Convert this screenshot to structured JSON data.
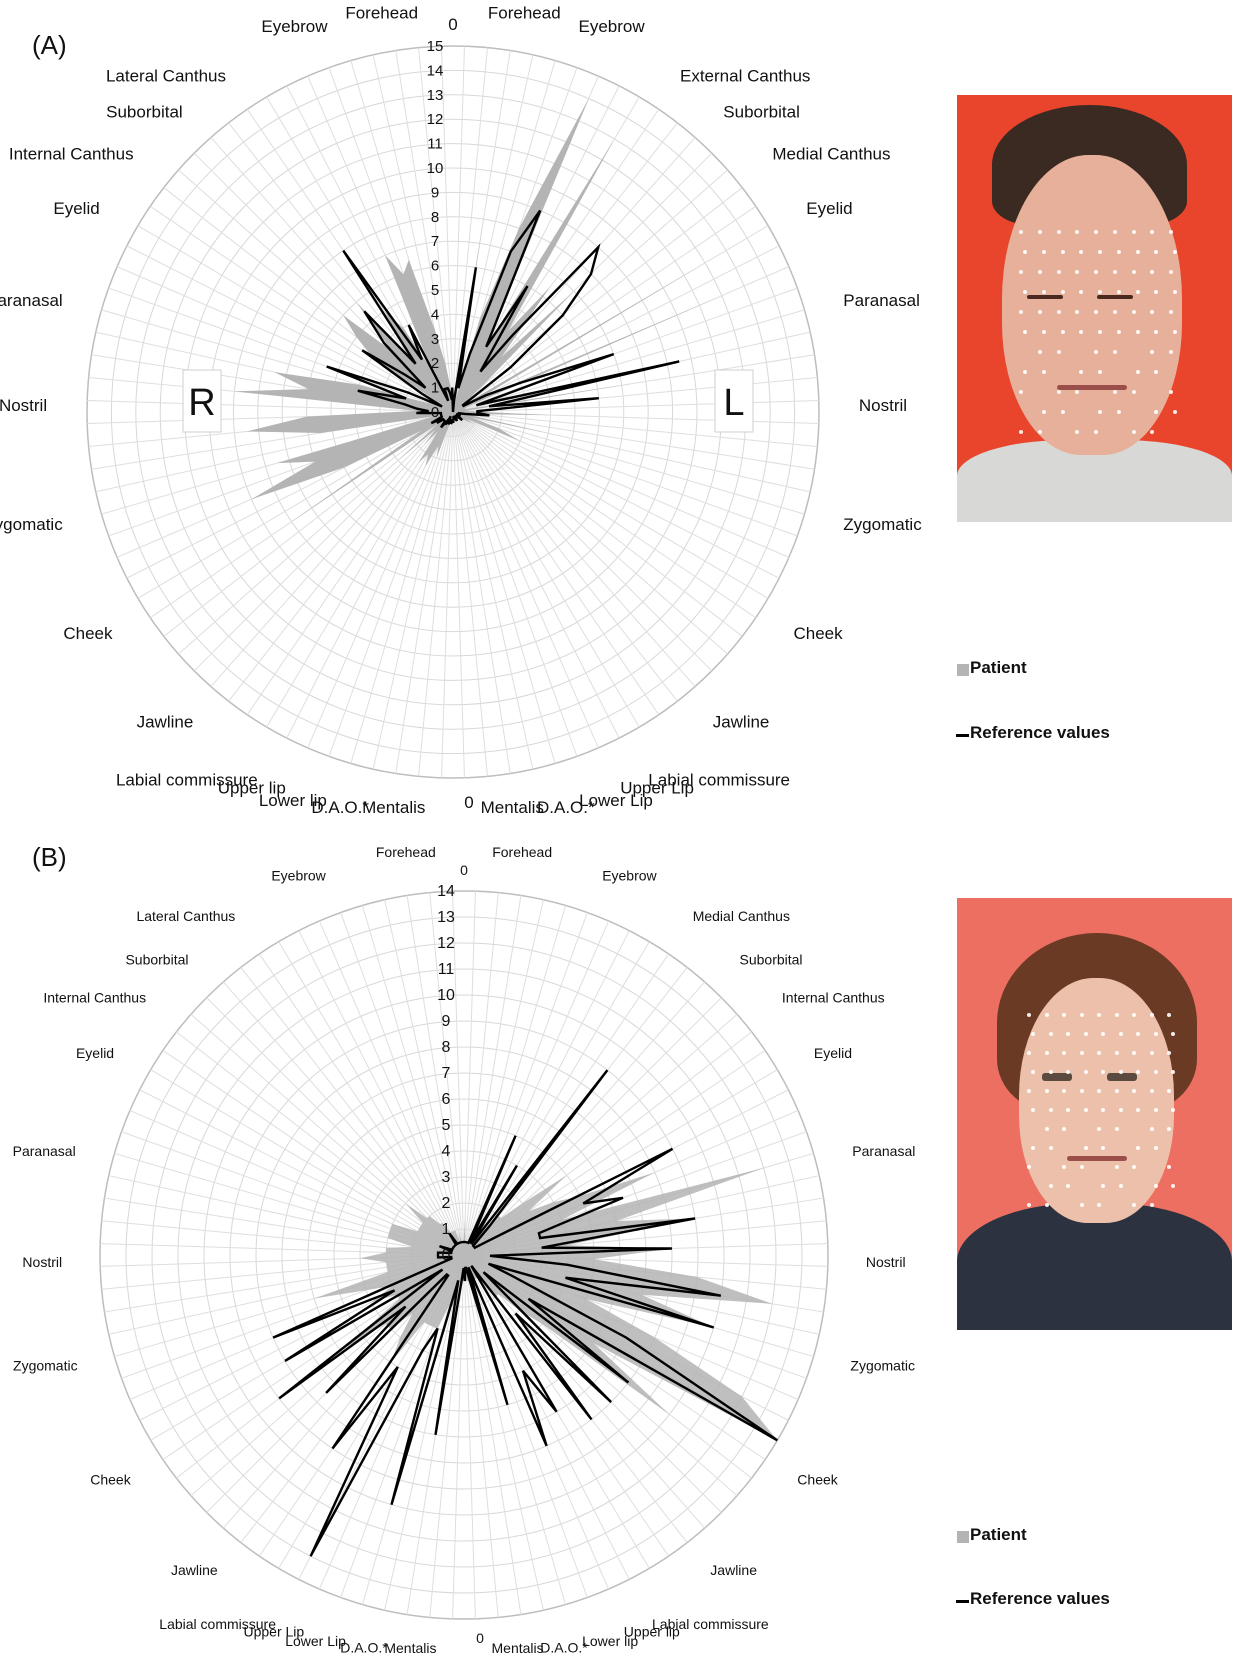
{
  "panels": [
    {
      "label": "(A)",
      "top_zero": "0",
      "bottom_zero": "0",
      "side_letters": {
        "right_side": "R",
        "left_side": "L"
      },
      "legend": {
        "patient": "Patient",
        "reference": "Reference values"
      },
      "colors": {
        "patient_fill": "#b4b4b4",
        "reference_line": "#000000",
        "photo_bg": "#e8452c"
      }
    },
    {
      "label": "(B)",
      "top_zero": "0",
      "bottom_zero": "0",
      "legend": {
        "patient": "Patient",
        "reference": "Reference values"
      },
      "colors": {
        "patient_fill": "#b4b4b4",
        "reference_line": "#000000",
        "photo_bg": "#ec6f61"
      }
    }
  ],
  "chart_data": [
    {
      "type": "radar",
      "rmax": 15,
      "ticks": [
        0,
        1,
        2,
        3,
        4,
        5,
        6,
        7,
        8,
        9,
        10,
        11,
        12,
        13,
        14,
        15
      ],
      "left_labels": [
        "Forehead",
        "Eyebrow",
        "Lateral Canthus",
        "Suborbital",
        "Internal Canthus",
        "Eyelid",
        "Paranasal",
        "Nostril",
        "Zygomatic",
        "Cheek",
        "Jawline",
        "Labial commissure",
        "Upper lip",
        "Lower lip",
        "D.A.O.*",
        "Mentalis"
      ],
      "right_labels": [
        "Forehead",
        "Eyebrow",
        "External Canthus",
        "Suborbital",
        "Medial Canthus",
        "Eyelid",
        "Paranasal",
        "Nostril",
        "Zygomatic",
        "Cheek",
        "Jawline",
        "Labial commissure",
        "Upper Lip",
        "Lower Lip",
        "D.A.O.*",
        "Mentalis"
      ],
      "series": [
        {
          "name": "Patient",
          "values": [
            0.3,
            0.5,
            8,
            0.6,
            4,
            8,
            14,
            3,
            13,
            4,
            6.5,
            3,
            7,
            1.5,
            0.5,
            0.5,
            11.5,
            1.2,
            12,
            0.6,
            0.5,
            0.5,
            7.5,
            0.5,
            0.8,
            4,
            1,
            0.5,
            4,
            0.8,
            2,
            3,
            0.6,
            1,
            0.6,
            0.5,
            0.4,
            0.4,
            0.3,
            0.3,
            0.3,
            0.3,
            0.3,
            0.3,
            0.3,
            0.3,
            0.3,
            0.3,
            0.2,
            0.2,
            0.2,
            0.3,
            0.4,
            0.5,
            0.6,
            2,
            1.5,
            2.5,
            2,
            2.5,
            1,
            1.8,
            1,
            3,
            0.8,
            8,
            1.5,
            5,
            9,
            6,
            7.5,
            0.8,
            5.5,
            8.5,
            6,
            1.5,
            9,
            6,
            7.5,
            4,
            1,
            1.5,
            1,
            0.5,
            4,
            5,
            6,
            3.5,
            6,
            3,
            5,
            4,
            2,
            7,
            6,
            6.5,
            3.5,
            2,
            1,
            1
          ]
        },
        {
          "name": "Reference values",
          "values": [
            0,
            0.5,
            6,
            1,
            2.5,
            7,
            9,
            3,
            6,
            2,
            4,
            9,
            8,
            6,
            3,
            0.5,
            0.5,
            1.5,
            3,
            7,
            1,
            9.5,
            1.5,
            6,
            1,
            1,
            1.5,
            0.5,
            0.2,
            0.3,
            0.3,
            0.3,
            0.2,
            0.2,
            0.2,
            0.3,
            0.5,
            0.3,
            0.2,
            0.2,
            0.3,
            0.2,
            0.3,
            0.4,
            0.3,
            0.3,
            0.3,
            0.2,
            0.2,
            0.4,
            0.4,
            0.4,
            0.5,
            0.3,
            0.4,
            0.5,
            0.5,
            0.2,
            0.6,
            0.5,
            0.8,
            0.5,
            0.5,
            0.5,
            0.5,
            0.8,
            0.5,
            1,
            0.5,
            0.5,
            0.5,
            0.5,
            0.5,
            0.5,
            1.5,
            1,
            1.5,
            2,
            4,
            2,
            5.5,
            2,
            0.5,
            1.5,
            4.5,
            2.5,
            1.5,
            4,
            5.5,
            2.5,
            8,
            2.5,
            4,
            0.5,
            1,
            1,
            1,
            0.8,
            0.5,
            1
          ]
        }
      ]
    },
    {
      "type": "radar",
      "rmax": 14,
      "ticks": [
        0,
        1,
        2,
        3,
        4,
        5,
        6,
        7,
        8,
        9,
        10,
        11,
        12,
        13,
        14
      ],
      "left_labels": [
        "Forehead",
        "Eyebrow",
        "Lateral Canthus",
        "Suborbital",
        "Internal Canthus",
        "Eyelid",
        "Paranasal",
        "Nostril",
        "Zygomatic",
        "Cheek",
        "Jawline",
        "Labial commissure",
        "Upper Lip",
        "Lower Lip",
        "D.A.O.*",
        "Mentalis"
      ],
      "right_labels": [
        "Forehead",
        "Eyebrow",
        "Medial Canthus",
        "Suborbital",
        "Internal Canthus",
        "Eyelid",
        "Paranasal",
        "Nostril",
        "Zygomatic",
        "Cheek",
        "Jawline",
        "Labial commissure",
        "Upper lip",
        "Lower lip",
        "D.A.O.*",
        "Mentalis"
      ],
      "series": [
        {
          "name": "Patient",
          "values": [
            1.5,
            0.5,
            0.5,
            0.5,
            0.5,
            1,
            1.5,
            0.8,
            1,
            1.5,
            1,
            2,
            2,
            3,
            5,
            3,
            4,
            5,
            8,
            4,
            12,
            6,
            9,
            4,
            8,
            5,
            9,
            12,
            7,
            10,
            5,
            8,
            12,
            14,
            6,
            10,
            4,
            3,
            2,
            2,
            1,
            1,
            1,
            1,
            1,
            1,
            1,
            1,
            1,
            1,
            1,
            1,
            1,
            2,
            2,
            3,
            3,
            3,
            3,
            5,
            4,
            3,
            4,
            4,
            6,
            3,
            3,
            4,
            3,
            4,
            6,
            3,
            3,
            3,
            4,
            3,
            3,
            2,
            3,
            3,
            3,
            3,
            2,
            2,
            2,
            2,
            3,
            2,
            2,
            1.5,
            1.5,
            1,
            1,
            1,
            1,
            0.5,
            1,
            0.5,
            0.5,
            0.5
          ]
        },
        {
          "name": "Reference values",
          "values": [
            0.5,
            0.5,
            0.5,
            0.5,
            0.5,
            0.5,
            5,
            0.5,
            4,
            0.5,
            9,
            1.5,
            0.5,
            0.5,
            0.5,
            0.5,
            1,
            9,
            5,
            6.5,
            3,
            3,
            9,
            3,
            8,
            1,
            4,
            10,
            4,
            10,
            1,
            2,
            7,
            14,
            3,
            8,
            1,
            8,
            3,
            8,
            0.5,
            7,
            5,
            8,
            0.5,
            6,
            1,
            0.5,
            0.5,
            1,
            0.5,
            1,
            7,
            1,
            10,
            3,
            4,
            13,
            5,
            9,
            1,
            1,
            7.5,
            3,
            9,
            1,
            8,
            3,
            8,
            1,
            0.5,
            0.5,
            0.5,
            1,
            1,
            1,
            1,
            0.5,
            0.5,
            0.5,
            1,
            0.5,
            0.5,
            0.5,
            0.5,
            0.5,
            0.5,
            0.5,
            0.5,
            0.5,
            1,
            0.5,
            0.5,
            0.5,
            0.5,
            0.5,
            0.5,
            0.5,
            0.5,
            0.5
          ]
        }
      ]
    }
  ]
}
